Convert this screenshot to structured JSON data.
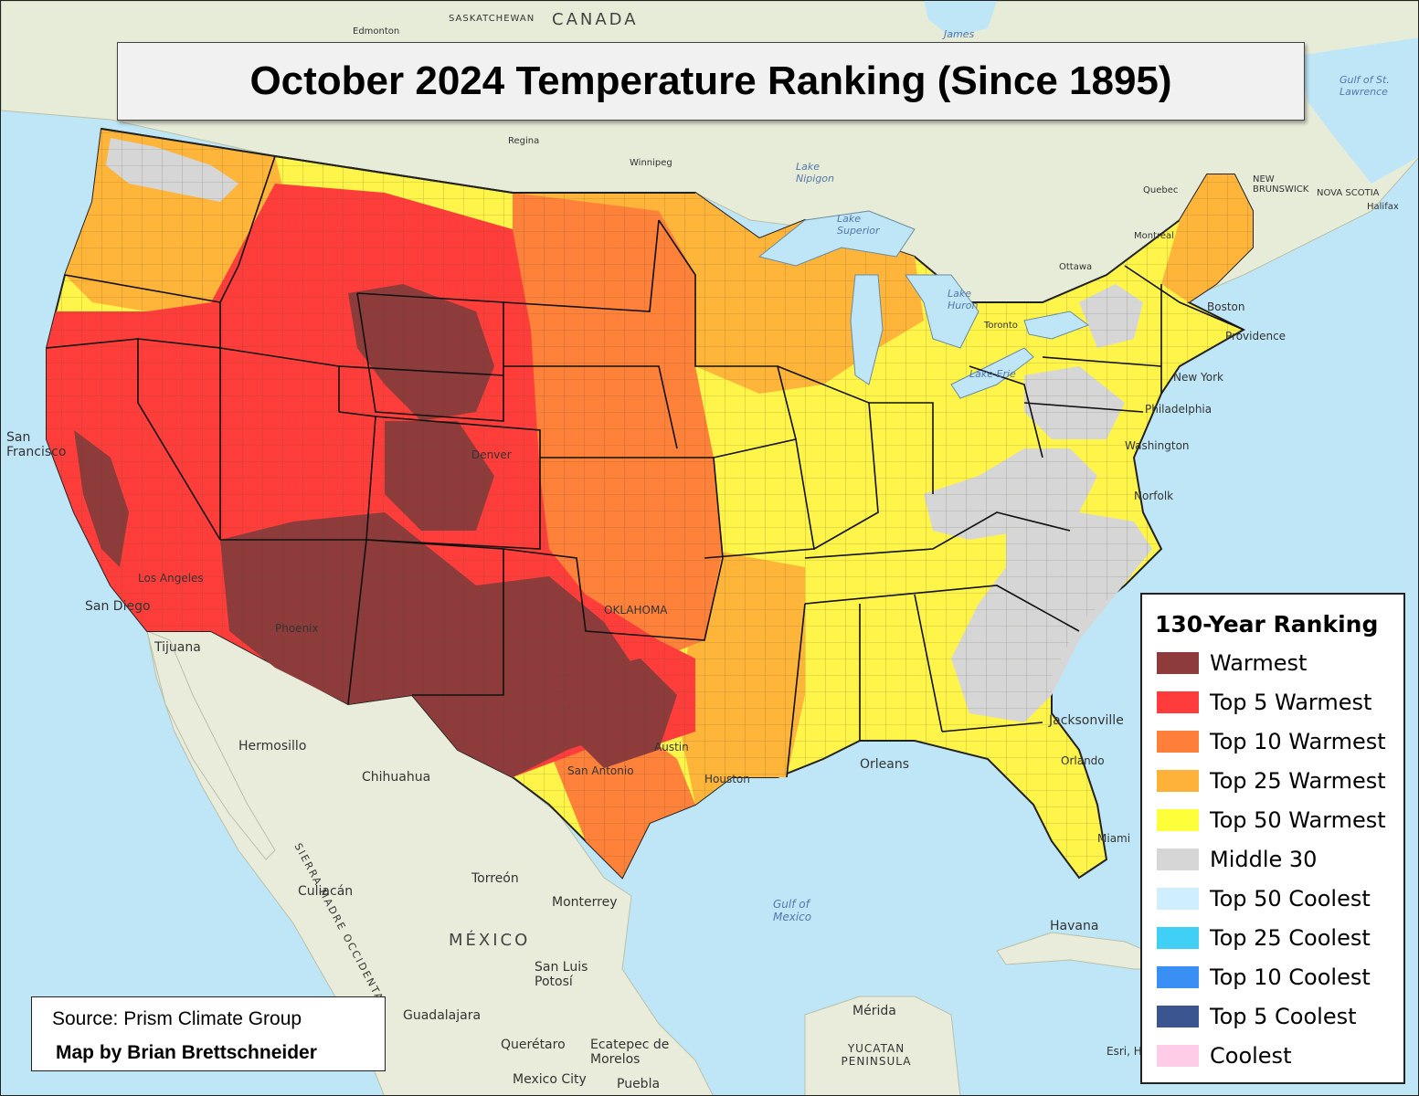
{
  "title": "October 2024 Temperature Ranking (Since 1895)",
  "legend": {
    "title": "130-Year Ranking",
    "items": [
      {
        "label": "Warmest",
        "color": "#8e3b3b"
      },
      {
        "label": "Top 5 Warmest",
        "color": "#ff3b3b"
      },
      {
        "label": "Top 10 Warmest",
        "color": "#ff7f3a"
      },
      {
        "label": "Top 25 Warmest",
        "color": "#ffb23a"
      },
      {
        "label": "Top 50 Warmest",
        "color": "#ffff3a"
      },
      {
        "label": "Middle 30",
        "color": "#d6d6d6"
      },
      {
        "label": "Top 50 Coolest",
        "color": "#cfeeff"
      },
      {
        "label": "Top 25 Coolest",
        "color": "#40d0f5"
      },
      {
        "label": "Top 10 Coolest",
        "color": "#3a8ff5"
      },
      {
        "label": "Top 5 Coolest",
        "color": "#3a5590"
      },
      {
        "label": "Coolest",
        "color": "#ffcce8"
      }
    ]
  },
  "source": {
    "line1": "Source: Prism Climate Group",
    "line2": "Map by Brian Brettschneider"
  },
  "places": {
    "canada": "CANADA",
    "mexico": "MÉXICO",
    "saskatchewan": "SASKATCHEWAN",
    "edmonton": "Edmonton",
    "regina": "Regina",
    "winnipeg": "Winnipeg",
    "lake_nipigon": "Lake Nipigon",
    "quebec": "Quebec",
    "montreal": "Montreal",
    "ottawa": "Ottawa",
    "toronto": "Toronto",
    "new_brunswick": "NEW BRUNSWICK",
    "nova_scotia": "NOVA SCOTIA",
    "halifax": "Halifax",
    "gulf_st_lawrence": "Gulf of St. Lawrence",
    "james": "James",
    "lake_superior": "Lake Superior",
    "lake_huron": "Lake Huron",
    "lake_erie": "Lake Erie",
    "boston": "Boston",
    "providence": "Providence",
    "new_york": "New York",
    "philadelphia": "Philadelphia",
    "washington": "Washington",
    "norfolk": "Norfolk",
    "jacksonville": "Jacksonville",
    "orlando": "Orlando",
    "miami": "Miami",
    "havana": "Havana",
    "new_orleans": "Orleans",
    "houston": "Houston",
    "austin": "Austin",
    "san_antonio": "San Antonio",
    "oklahoma": "OKLAHOMA",
    "denver": "Denver",
    "los_angeles": "Los Angeles",
    "san_diego": "San Diego",
    "san_francisco": "San Francisco",
    "tijuana": "Tijuana",
    "phoenix": "Phoenix",
    "hermosillo": "Hermosillo",
    "chihuahua": "Chihuahua",
    "torreon": "Torreón",
    "monterrey": "Monterrey",
    "culiacan": "Culiacán",
    "san_luis_potosi": "San Luis Potosí",
    "guadalajara": "Guadalajara",
    "queretaro": "Querétaro",
    "ecatepec": "Ecatepec de Morelos",
    "mexico_city": "Mexico City",
    "puebla": "Puebla",
    "merida": "Mérida",
    "yucatan": "YUCATAN PENINSULA",
    "gulf_of_mexico": "Gulf of Mexico",
    "sierra_madre": "SIERRA MADRE OCCIDENTAL",
    "esri": "Esri, H"
  },
  "colors": {
    "ocean": "#bfe6f7",
    "land": "#e6ecd8",
    "mexico_land": "#e9ecdb"
  }
}
